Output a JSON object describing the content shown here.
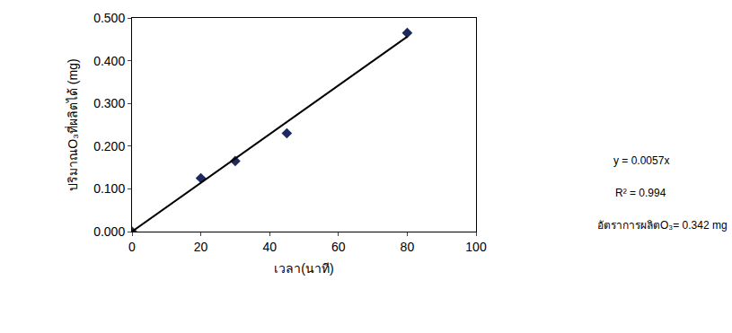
{
  "chart_data": {
    "type": "scatter",
    "x_label": "เวลา(นาที)",
    "y_label": "ปริมาณO₃ที่ผลิตได้ (mg)",
    "xlim": [
      0,
      100
    ],
    "xticks": [
      0,
      20,
      40,
      60,
      80,
      100
    ],
    "ylim": [
      0,
      0.5
    ],
    "yticks": [
      {
        "value": 0,
        "label": "0.000"
      },
      {
        "value": 0.1,
        "label": "0.100"
      },
      {
        "value": 0.2,
        "label": "0.200"
      },
      {
        "value": 0.3,
        "label": "0.300"
      },
      {
        "value": 0.4,
        "label": "0.400"
      },
      {
        "value": 0.5,
        "label": "0.500"
      }
    ],
    "grid": false,
    "series": [
      {
        "type": "scatter",
        "marker": "diamond",
        "color": "#1f2a5c",
        "x": [
          0,
          20,
          30,
          45,
          80
        ],
        "values": [
          0,
          0.125,
          0.165,
          0.23,
          0.465
        ]
      },
      {
        "type": "line",
        "line_style": "solid",
        "color": "#000000",
        "x": [
          0,
          80
        ],
        "values": [
          0,
          0.456
        ]
      }
    ],
    "annotations": [
      "y = 0.0057x",
      "R² = 0.994",
      "อัตราการผลิตO₃= 0.342 mg"
    ]
  }
}
